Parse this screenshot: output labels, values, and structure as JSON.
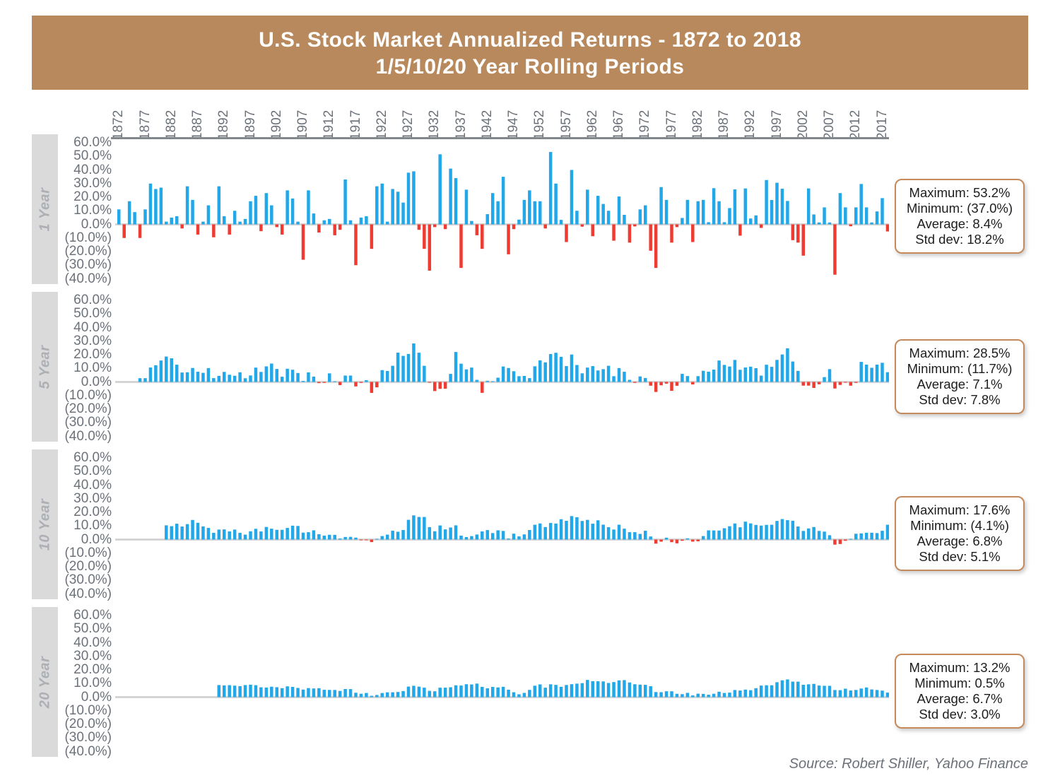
{
  "title": {
    "line1": "U.S. Stock Market Annualized Returns - 1872 to 2018",
    "line2": "1/5/10/20 Year Rolling Periods"
  },
  "source_credit": "Source: Robert Shiller, Yahoo Finance",
  "colors": {
    "banner": "#B8895C",
    "positive_bar": "#22A7E8",
    "negative_bar": "#EF3B31",
    "zero_line": "#D2D2D2",
    "axis_line": "#82878C",
    "tick_label": "#6C727A",
    "strip_bg": "#DADADA",
    "strip_text": "#ACB0B5",
    "stats_border": "#C48A5C"
  },
  "y_axis_tick_labels": [
    "60.0%",
    "50.0%",
    "40.0%",
    "30.0%",
    "20.0%",
    "10.0%",
    "0.0%",
    "(10.0%)",
    "(20.0%)",
    "(30.0%)",
    "(40.0%)"
  ],
  "x_axis_tick_years": [
    "1872",
    "1877",
    "1882",
    "1887",
    "1892",
    "1897",
    "1902",
    "1907",
    "1912",
    "1917",
    "1922",
    "1927",
    "1932",
    "1937",
    "1942",
    "1947",
    "1952",
    "1957",
    "1962",
    "1967",
    "1972",
    "1977",
    "1982",
    "1987",
    "1992",
    "1997",
    "2002",
    "2007",
    "2012",
    "2017"
  ],
  "chart_data": {
    "type": "bar",
    "title": "U.S. Stock Market Annualized Returns - 1872 to 2018",
    "subtitle": "1/5/10/20 Year Rolling Periods",
    "x": {
      "start_year": 1872,
      "end_year": 2018,
      "tick_interval_years": 5
    },
    "ylim": [
      -40,
      60
    ],
    "y_ticks_pct": [
      60,
      50,
      40,
      30,
      20,
      10,
      0,
      -10,
      -20,
      -30,
      -40
    ],
    "grid": false,
    "legend": false,
    "bar_colors": {
      "positive": "#22A7E8",
      "negative": "#EF3B31"
    },
    "series_1yr_annual_returns_pct": [
      11,
      -10,
      17,
      9,
      -10,
      11,
      30,
      26,
      27,
      2,
      5,
      6,
      -3,
      28,
      18,
      -7.5,
      2,
      14,
      -9.5,
      28,
      6,
      -7.5,
      10,
      2,
      4,
      17,
      21,
      -5,
      23,
      14,
      -2,
      -7.5,
      25,
      19,
      2,
      -26,
      25,
      8,
      -6,
      3,
      4,
      -8,
      -4,
      33,
      3,
      -30,
      5,
      6,
      -18,
      28,
      30,
      2,
      26,
      24,
      16,
      38,
      39,
      -4,
      -18,
      -34,
      -2,
      51.5,
      -3.5,
      41,
      34,
      -32,
      25.5,
      2.5,
      -8,
      -18,
      7.5,
      23,
      17,
      35,
      -22,
      -3.5,
      3.5,
      18,
      25,
      17,
      17,
      -3,
      53.2,
      30,
      3.3,
      -13,
      40,
      10,
      -1.7,
      25.5,
      -8.7,
      21,
      15,
      10,
      -12,
      20.5,
      7,
      -13.4,
      -1.5,
      11,
      14,
      -19.4,
      -32,
      27.4,
      18,
      -13.4,
      -2,
      4.7,
      18,
      -13,
      17,
      18,
      1.6,
      26.6,
      17,
      1.6,
      12,
      25.7,
      -8.3,
      26.4,
      4.3,
      6.6,
      -2.6,
      32.6,
      17.9,
      30.6,
      26.2,
      17.2,
      -11.6,
      -13.4,
      -23,
      26.4,
      7.3,
      1.4,
      12.5,
      1.4,
      -37,
      23,
      12.5,
      -1.4,
      12.5,
      29.7,
      12.5,
      1.4,
      9.5,
      19.3,
      -5.2
    ],
    "derivation_note": "5/10/20 year panels show rolling annualized (geometric mean) returns derived from the 1-year series; first bar appears at the end year of the first full window",
    "panels": [
      {
        "label": "1 Year",
        "window_years": 1,
        "first_bar_year": 1872,
        "stats_lines": [
          "Maximum: 53.2%",
          "Minimum: (37.0%)",
          "Average: 8.4%",
          "Std dev: 18.2%"
        ],
        "stats": {
          "maximum_pct": 53.2,
          "minimum_pct": -37.0,
          "average_pct": 8.4,
          "std_dev_pct": 18.2
        }
      },
      {
        "label": "5 Year",
        "window_years": 5,
        "first_bar_year": 1876,
        "stats_lines": [
          "Maximum: 28.5%",
          "Minimum: (11.7%)",
          "Average: 7.1%",
          "Std dev: 7.8%"
        ],
        "stats": {
          "maximum_pct": 28.5,
          "minimum_pct": -11.7,
          "average_pct": 7.1,
          "std_dev_pct": 7.8
        }
      },
      {
        "label": "10 Year",
        "window_years": 10,
        "first_bar_year": 1881,
        "stats_lines": [
          "Maximum: 17.6%",
          "Minimum: (4.1%)",
          "Average: 6.8%",
          "Std dev: 5.1%"
        ],
        "stats": {
          "maximum_pct": 17.6,
          "minimum_pct": -4.1,
          "average_pct": 6.8,
          "std_dev_pct": 5.1
        }
      },
      {
        "label": "20 Year",
        "window_years": 20,
        "first_bar_year": 1891,
        "stats_lines": [
          "Maximum: 13.2%",
          "Minimum: 0.5%",
          "Average: 6.7%",
          "Std dev: 3.0%"
        ],
        "stats": {
          "maximum_pct": 13.2,
          "minimum_pct": 0.5,
          "average_pct": 6.7,
          "std_dev_pct": 3.0
        }
      }
    ]
  }
}
